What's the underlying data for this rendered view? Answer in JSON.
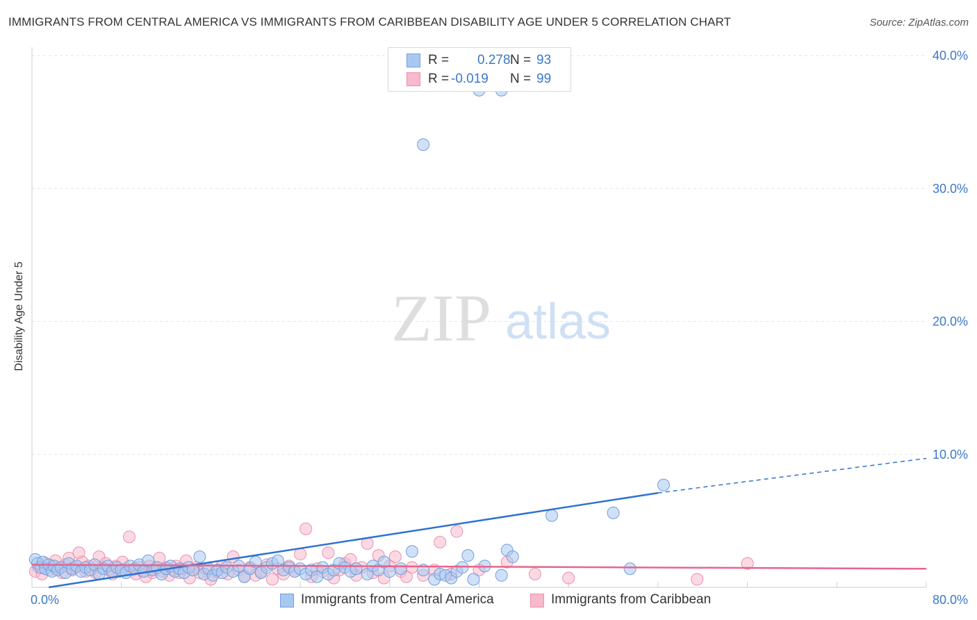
{
  "title": "IMMIGRANTS FROM CENTRAL AMERICA VS IMMIGRANTS FROM CARIBBEAN DISABILITY AGE UNDER 5 CORRELATION CHART",
  "source": "Source: ZipAtlas.com",
  "watermark": {
    "zip": "ZIP",
    "atlas": "atlas"
  },
  "stats": {
    "r_label": "R =",
    "n_label": "N =",
    "series1": {
      "r": "0.278",
      "n": "93"
    },
    "series2": {
      "r": "-0.019",
      "n": "99"
    }
  },
  "colors": {
    "blue_fill": "#a9c8f0",
    "blue_stroke": "#6f9fdc",
    "blue_line": "#2f72d0",
    "pink_fill": "#f7b9cc",
    "pink_stroke": "#ec8fad",
    "pink_line": "#e8648c",
    "tick_text": "#3b78c9",
    "grid": "#e3e3e3"
  },
  "chart_data": {
    "type": "scatter",
    "title": "IMMIGRANTS FROM CENTRAL AMERICA VS IMMIGRANTS FROM CARIBBEAN DISABILITY AGE UNDER 5 CORRELATION CHART",
    "xlabel": "",
    "ylabel": "Disability Age Under 5",
    "xlim": [
      0,
      80
    ],
    "ylim": [
      0,
      40
    ],
    "x_tick_labels": [
      "0.0%",
      "80.0%"
    ],
    "y_ticks": [
      10,
      20,
      30,
      40
    ],
    "y_tick_labels": [
      "10.0%",
      "20.0%",
      "30.0%",
      "40.0%"
    ],
    "grid": true,
    "legend_position": "bottom",
    "series": [
      {
        "name": "Immigrants from Central America",
        "color": "#a9c8f0",
        "trend": {
          "x0": 1.5,
          "y0": 0.0,
          "x1": 56,
          "y1": 7.1,
          "dash_to_x": 80,
          "dash_to_y": 9.7
        },
        "points": [
          [
            0.3,
            2.1
          ],
          [
            0.5,
            1.8
          ],
          [
            0.8,
            1.5
          ],
          [
            1.0,
            1.9
          ],
          [
            1.2,
            1.4
          ],
          [
            1.5,
            1.7
          ],
          [
            1.8,
            1.2
          ],
          [
            2.0,
            1.6
          ],
          [
            2.3,
            1.3
          ],
          [
            2.6,
            1.5
          ],
          [
            3.0,
            1.1
          ],
          [
            3.3,
            1.8
          ],
          [
            3.6,
            1.4
          ],
          [
            4.0,
            1.6
          ],
          [
            4.4,
            1.2
          ],
          [
            4.8,
            1.5
          ],
          [
            5.2,
            1.3
          ],
          [
            5.6,
            1.7
          ],
          [
            6.0,
            1.0
          ],
          [
            6.4,
            1.4
          ],
          [
            6.8,
            1.6
          ],
          [
            7.2,
            1.2
          ],
          [
            7.6,
            1.5
          ],
          [
            8.0,
            1.3
          ],
          [
            8.4,
            1.1
          ],
          [
            8.8,
            1.6
          ],
          [
            9.2,
            1.4
          ],
          [
            9.6,
            1.7
          ],
          [
            10.0,
            1.2
          ],
          [
            10.4,
            2.0
          ],
          [
            10.8,
            1.3
          ],
          [
            11.2,
            1.5
          ],
          [
            11.6,
            1.0
          ],
          [
            12.0,
            1.4
          ],
          [
            12.4,
            1.6
          ],
          [
            12.8,
            1.2
          ],
          [
            13.2,
            1.4
          ],
          [
            13.6,
            1.1
          ],
          [
            14.0,
            1.5
          ],
          [
            14.4,
            1.3
          ],
          [
            15.0,
            2.3
          ],
          [
            15.4,
            1.0
          ],
          [
            15.8,
            1.4
          ],
          [
            16.2,
            0.9
          ],
          [
            16.6,
            1.3
          ],
          [
            17.0,
            1.1
          ],
          [
            17.4,
            1.5
          ],
          [
            18.0,
            1.2
          ],
          [
            18.5,
            1.6
          ],
          [
            19.0,
            0.8
          ],
          [
            19.5,
            1.4
          ],
          [
            20.0,
            1.9
          ],
          [
            20.5,
            1.1
          ],
          [
            21.0,
            1.5
          ],
          [
            21.5,
            1.8
          ],
          [
            22.0,
            2.0
          ],
          [
            22.5,
            1.3
          ],
          [
            23.0,
            1.5
          ],
          [
            23.5,
            1.2
          ],
          [
            24.0,
            1.4
          ],
          [
            24.5,
            1.0
          ],
          [
            25.0,
            1.3
          ],
          [
            25.5,
            0.8
          ],
          [
            26.0,
            1.5
          ],
          [
            26.5,
            1.0
          ],
          [
            27.0,
            1.3
          ],
          [
            27.5,
            1.8
          ],
          [
            28.0,
            1.5
          ],
          [
            28.5,
            1.2
          ],
          [
            29.0,
            1.4
          ],
          [
            30.0,
            1.0
          ],
          [
            30.5,
            1.6
          ],
          [
            31.0,
            1.3
          ],
          [
            31.5,
            1.9
          ],
          [
            32.0,
            1.2
          ],
          [
            33.0,
            1.4
          ],
          [
            34.0,
            2.7
          ],
          [
            35.0,
            1.3
          ],
          [
            36.0,
            0.6
          ],
          [
            36.5,
            1.0
          ],
          [
            37.0,
            0.9
          ],
          [
            37.5,
            0.7
          ],
          [
            38.0,
            1.2
          ],
          [
            38.5,
            1.5
          ],
          [
            39.0,
            2.4
          ],
          [
            39.5,
            0.6
          ],
          [
            40.5,
            1.6
          ],
          [
            42.0,
            0.9
          ],
          [
            42.5,
            2.8
          ],
          [
            43.0,
            2.3
          ],
          [
            46.5,
            5.4
          ],
          [
            52.0,
            5.6
          ],
          [
            56.5,
            7.7
          ],
          [
            35.0,
            33.3
          ],
          [
            42.0,
            37.4
          ],
          [
            40.0,
            37.4
          ],
          [
            53.5,
            1.4
          ]
        ]
      },
      {
        "name": "Immigrants from Caribbean",
        "color": "#f7b9cc",
        "trend": {
          "x0": 0,
          "y0": 1.7,
          "x1": 80,
          "y1": 1.4
        },
        "points": [
          [
            0.3,
            1.2
          ],
          [
            0.6,
            1.5
          ],
          [
            0.9,
            1.0
          ],
          [
            1.2,
            1.8
          ],
          [
            1.5,
            1.3
          ],
          [
            1.8,
            1.6
          ],
          [
            2.1,
            2.0
          ],
          [
            2.4,
            1.4
          ],
          [
            2.7,
            1.1
          ],
          [
            3.0,
            1.7
          ],
          [
            3.3,
            2.2
          ],
          [
            3.6,
            1.3
          ],
          [
            3.9,
            1.5
          ],
          [
            4.2,
            2.6
          ],
          [
            4.5,
            1.9
          ],
          [
            4.8,
            1.2
          ],
          [
            5.1,
            1.6
          ],
          [
            5.4,
            1.4
          ],
          [
            5.7,
            1.1
          ],
          [
            6.0,
            2.3
          ],
          [
            6.3,
            1.5
          ],
          [
            6.6,
            1.8
          ],
          [
            6.9,
            1.3
          ],
          [
            7.2,
            1.0
          ],
          [
            7.5,
            1.6
          ],
          [
            7.8,
            1.2
          ],
          [
            8.1,
            1.9
          ],
          [
            8.4,
            1.4
          ],
          [
            8.7,
            3.8
          ],
          [
            9.0,
            1.3
          ],
          [
            9.3,
            1.0
          ],
          [
            9.6,
            1.5
          ],
          [
            9.9,
            1.2
          ],
          [
            10.2,
            0.8
          ],
          [
            10.5,
            1.6
          ],
          [
            10.8,
            1.1
          ],
          [
            11.1,
            1.4
          ],
          [
            11.4,
            2.2
          ],
          [
            11.7,
            1.2
          ],
          [
            12.0,
            1.5
          ],
          [
            12.3,
            0.9
          ],
          [
            12.6,
            1.3
          ],
          [
            12.9,
            1.6
          ],
          [
            13.2,
            1.1
          ],
          [
            13.5,
            1.4
          ],
          [
            13.8,
            2.0
          ],
          [
            14.1,
            0.7
          ],
          [
            14.4,
            1.3
          ],
          [
            14.7,
            1.5
          ],
          [
            15.0,
            1.1
          ],
          [
            15.5,
            1.4
          ],
          [
            16.0,
            0.6
          ],
          [
            16.5,
            1.2
          ],
          [
            17.0,
            1.6
          ],
          [
            17.5,
            1.0
          ],
          [
            18.0,
            2.3
          ],
          [
            18.5,
            1.3
          ],
          [
            19.0,
            0.8
          ],
          [
            19.5,
            1.5
          ],
          [
            20.0,
            0.9
          ],
          [
            20.5,
            1.2
          ],
          [
            21.0,
            1.7
          ],
          [
            21.5,
            0.6
          ],
          [
            22.0,
            1.4
          ],
          [
            22.5,
            1.0
          ],
          [
            23.0,
            1.6
          ],
          [
            23.5,
            1.2
          ],
          [
            24.0,
            2.5
          ],
          [
            24.5,
            4.4
          ],
          [
            25.0,
            0.8
          ],
          [
            25.5,
            1.4
          ],
          [
            26.0,
            1.2
          ],
          [
            26.5,
            2.6
          ],
          [
            27.0,
            0.7
          ],
          [
            27.5,
            1.3
          ],
          [
            28.0,
            1.8
          ],
          [
            28.5,
            2.1
          ],
          [
            29.0,
            0.9
          ],
          [
            29.5,
            1.5
          ],
          [
            30.0,
            3.3
          ],
          [
            30.5,
            1.1
          ],
          [
            31.0,
            2.4
          ],
          [
            31.5,
            0.7
          ],
          [
            32.0,
            1.6
          ],
          [
            32.5,
            2.3
          ],
          [
            33.0,
            1.2
          ],
          [
            33.5,
            0.8
          ],
          [
            34.0,
            1.5
          ],
          [
            35.0,
            0.9
          ],
          [
            36.0,
            1.3
          ],
          [
            36.5,
            3.4
          ],
          [
            37.5,
            1.0
          ],
          [
            38.0,
            4.2
          ],
          [
            40.0,
            1.3
          ],
          [
            42.5,
            1.9
          ],
          [
            45.0,
            1.0
          ],
          [
            48.0,
            0.7
          ],
          [
            59.5,
            0.6
          ],
          [
            64.0,
            1.8
          ]
        ]
      }
    ]
  },
  "legend": {
    "series1_label": "Immigrants from Central America",
    "series2_label": "Immigrants from Caribbean"
  }
}
